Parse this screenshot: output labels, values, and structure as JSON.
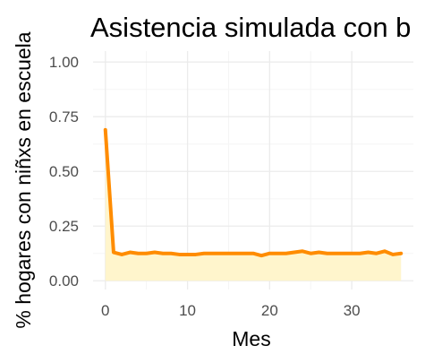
{
  "chart_data": {
    "type": "area",
    "title": "Asistencia simulada con b",
    "xlabel": "Mes",
    "ylabel": "% hogares con niñxs en escuela",
    "xlim": [
      -1.5,
      37.5
    ],
    "ylim": [
      -0.04,
      1.05
    ],
    "x_ticks": [
      0,
      10,
      20,
      30
    ],
    "x_tick_labels": [
      "0",
      "10",
      "20",
      "30"
    ],
    "y_ticks": [
      0,
      0.25,
      0.5,
      0.75,
      1.0
    ],
    "y_tick_labels": [
      "0.00",
      "0.25",
      "0.50",
      "0.75",
      "1.00"
    ],
    "grid": true,
    "legend": "none",
    "x": [
      0,
      1,
      2,
      3,
      4,
      5,
      6,
      7,
      8,
      9,
      10,
      11,
      12,
      13,
      14,
      15,
      16,
      17,
      18,
      19,
      20,
      21,
      22,
      23,
      24,
      25,
      26,
      27,
      28,
      29,
      30,
      31,
      32,
      33,
      34,
      35,
      36
    ],
    "y": [
      0.69,
      0.13,
      0.12,
      0.13,
      0.125,
      0.125,
      0.13,
      0.125,
      0.125,
      0.12,
      0.12,
      0.12,
      0.125,
      0.125,
      0.125,
      0.125,
      0.125,
      0.125,
      0.125,
      0.115,
      0.125,
      0.125,
      0.125,
      0.13,
      0.135,
      0.125,
      0.13,
      0.125,
      0.125,
      0.125,
      0.125,
      0.125,
      0.13,
      0.125,
      0.135,
      0.12,
      0.125
    ],
    "colors": {
      "line": "#ff8c00",
      "fill": "#fff5cc",
      "grid_major": "#ebebeb",
      "grid_minor": "#f5f5f5"
    }
  }
}
